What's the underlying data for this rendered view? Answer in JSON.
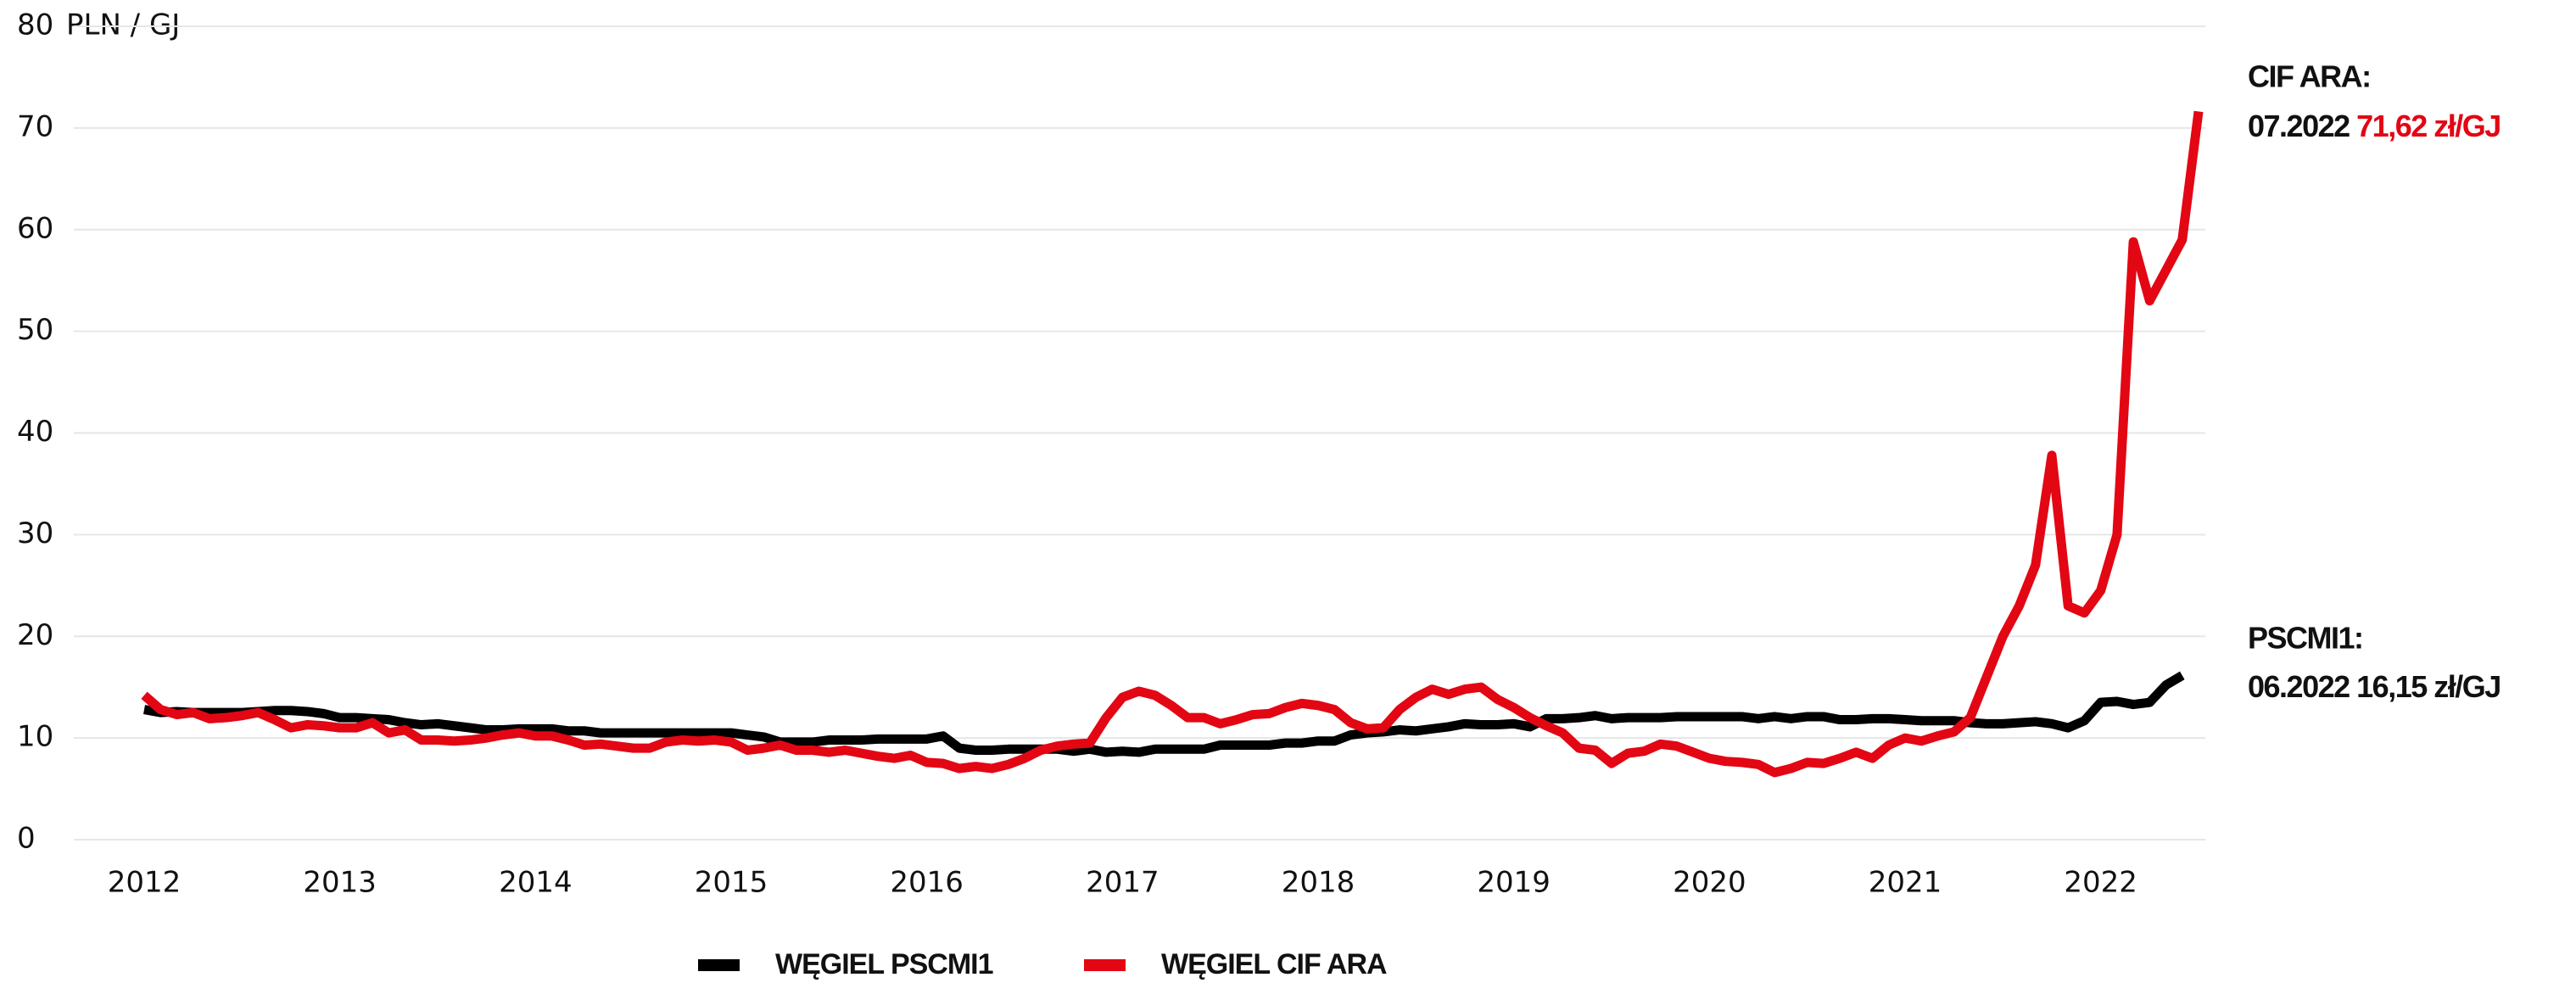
{
  "chart_data": {
    "type": "line",
    "y_label": "PLN / GJ",
    "categories": [
      "2012",
      null,
      null,
      null,
      null,
      null,
      null,
      null,
      null,
      null,
      null,
      null,
      "2013",
      null,
      null,
      null,
      null,
      null,
      null,
      null,
      null,
      null,
      null,
      null,
      "2014",
      null,
      null,
      null,
      null,
      null,
      null,
      null,
      null,
      null,
      null,
      null,
      "2015",
      null,
      null,
      null,
      null,
      null,
      null,
      null,
      null,
      null,
      null,
      null,
      "2016",
      null,
      null,
      null,
      null,
      null,
      null,
      null,
      null,
      null,
      null,
      null,
      "2017",
      null,
      null,
      null,
      null,
      null,
      null,
      null,
      null,
      null,
      null,
      null,
      "2018",
      null,
      null,
      null,
      null,
      null,
      null,
      null,
      null,
      null,
      null,
      null,
      "2019",
      null,
      null,
      null,
      null,
      null,
      null,
      null,
      null,
      null,
      null,
      null,
      "2020",
      null,
      null,
      null,
      null,
      null,
      null,
      null,
      null,
      null,
      null,
      null,
      "2021",
      null,
      null,
      null,
      null,
      null,
      null,
      null,
      null,
      null,
      null,
      null,
      "2022",
      null,
      null,
      null,
      null,
      null,
      null
    ],
    "series": [
      {
        "name": "WĘGIEL PSCMI1",
        "color": "#000000",
        "values": [
          12.8,
          12.5,
          12.6,
          12.5,
          12.5,
          12.5,
          12.5,
          12.6,
          12.7,
          12.7,
          12.6,
          12.4,
          12.0,
          12.0,
          11.9,
          11.8,
          11.5,
          11.3,
          11.4,
          11.2,
          11.0,
          10.8,
          10.8,
          10.9,
          10.9,
          10.9,
          10.7,
          10.7,
          10.5,
          10.5,
          10.5,
          10.5,
          10.5,
          10.5,
          10.5,
          10.5,
          10.5,
          10.3,
          10.1,
          9.6,
          9.6,
          9.6,
          9.8,
          9.8,
          9.8,
          9.9,
          9.9,
          9.9,
          9.9,
          10.2,
          9.0,
          8.8,
          8.8,
          8.9,
          8.9,
          8.9,
          8.9,
          8.7,
          8.9,
          8.6,
          8.7,
          8.6,
          8.9,
          8.9,
          8.9,
          8.9,
          9.3,
          9.3,
          9.3,
          9.3,
          9.5,
          9.5,
          9.7,
          9.7,
          10.3,
          10.5,
          10.6,
          10.8,
          10.7,
          10.9,
          11.1,
          11.4,
          11.3,
          11.3,
          11.4,
          11.1,
          11.9,
          11.9,
          12.0,
          12.2,
          11.9,
          12.0,
          12.0,
          12.0,
          12.1,
          12.1,
          12.1,
          12.1,
          12.1,
          11.9,
          12.1,
          11.9,
          12.1,
          12.1,
          11.8,
          11.8,
          11.9,
          11.9,
          11.8,
          11.7,
          11.7,
          11.7,
          11.5,
          11.4,
          11.4,
          11.5,
          11.6,
          11.4,
          11.0,
          11.7,
          13.5,
          13.6,
          13.3,
          13.5,
          15.2,
          16.15,
          null
        ]
      },
      {
        "name": "WĘGIEL CIF ARA",
        "color": "#e30613",
        "values": [
          14.2,
          12.8,
          12.3,
          12.5,
          11.9,
          12.0,
          12.2,
          12.5,
          11.8,
          11.0,
          11.3,
          11.2,
          11.0,
          11.0,
          11.5,
          10.5,
          10.8,
          9.8,
          9.8,
          9.7,
          9.8,
          10.0,
          10.3,
          10.5,
          10.2,
          10.2,
          9.8,
          9.3,
          9.4,
          9.2,
          9.0,
          9.0,
          9.6,
          9.8,
          9.7,
          9.8,
          9.6,
          8.8,
          9.0,
          9.3,
          8.8,
          8.8,
          8.6,
          8.8,
          8.5,
          8.2,
          8.0,
          8.3,
          7.6,
          7.5,
          7.0,
          7.2,
          7.0,
          7.4,
          8.0,
          8.8,
          9.2,
          9.4,
          9.5,
          12.0,
          14.0,
          14.6,
          14.2,
          13.2,
          12.0,
          12.0,
          11.4,
          11.8,
          12.3,
          12.4,
          13.0,
          13.4,
          13.2,
          12.8,
          11.5,
          10.9,
          11.0,
          12.8,
          14.0,
          14.8,
          14.3,
          14.8,
          15.0,
          13.8,
          13.0,
          12.0,
          11.2,
          10.5,
          9.0,
          8.8,
          7.5,
          8.5,
          8.7,
          9.4,
          9.2,
          8.6,
          8.0,
          7.7,
          7.6,
          7.4,
          6.6,
          7.0,
          7.6,
          7.5,
          8.0,
          8.6,
          8.0,
          9.3,
          10.0,
          9.7,
          10.2,
          10.6,
          12.0,
          16.0,
          20.0,
          23.0,
          27.0,
          37.8,
          23.0,
          22.3,
          24.5,
          30.0,
          58.8,
          53.0,
          56.0,
          59.0,
          71.62
        ]
      }
    ],
    "ylim": [
      0,
      80
    ],
    "yticks": [
      0,
      10,
      20,
      30,
      40,
      50,
      60,
      70,
      80
    ],
    "grid": true,
    "legend": "bottom",
    "annotations": [
      {
        "title": "CIF ARA:",
        "date": "07.2022",
        "value": "71,62 zł/GJ"
      },
      {
        "title": "PSCMI1:",
        "date": "06.2022",
        "value": "16,15 zł/GJ"
      }
    ]
  }
}
